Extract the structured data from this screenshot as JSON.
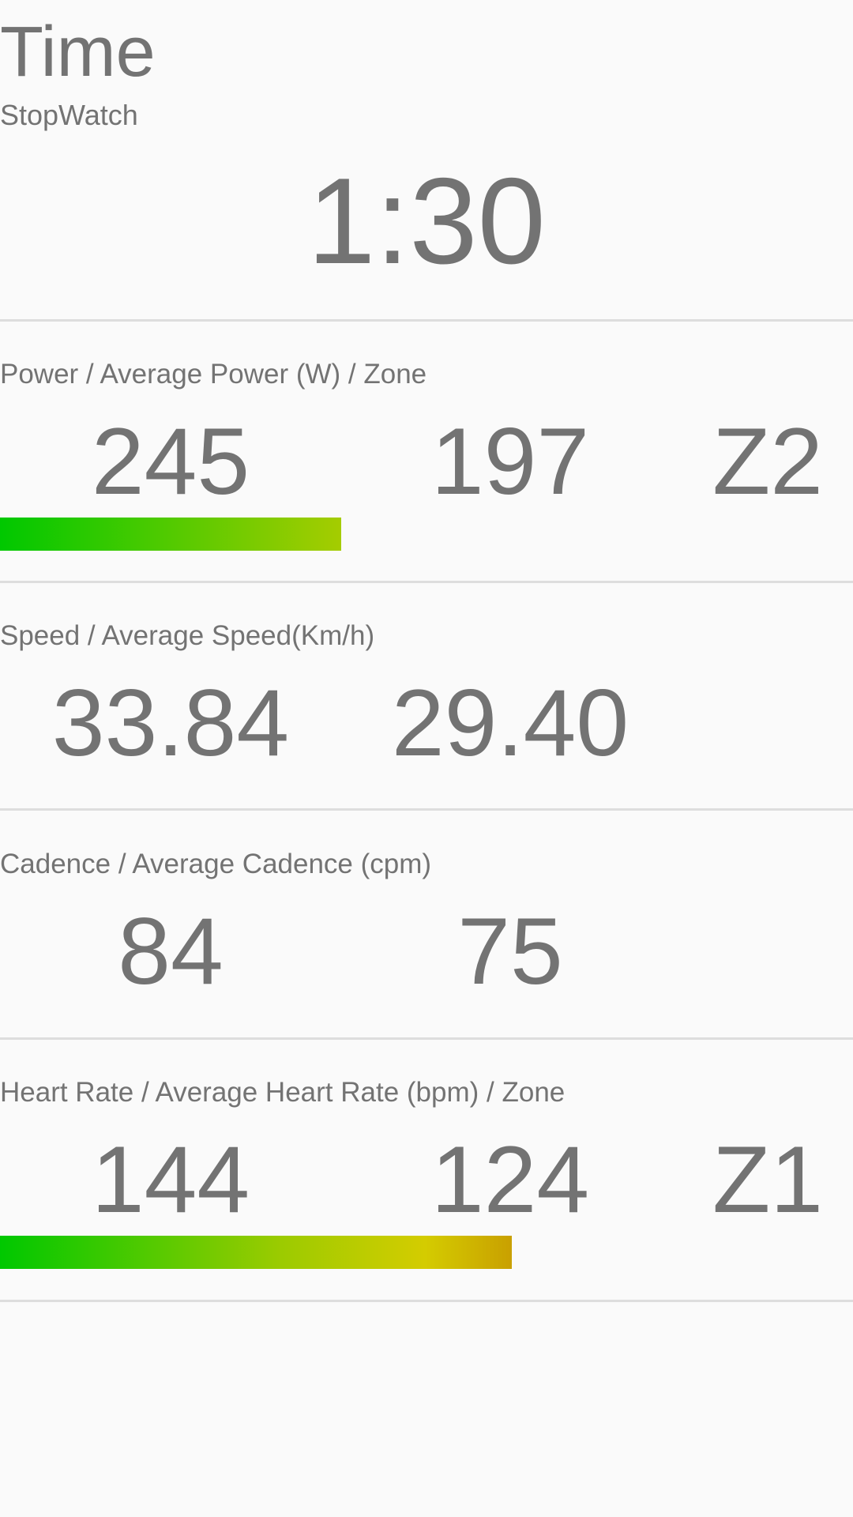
{
  "header": {
    "title": "Time",
    "subtitle": "StopWatch"
  },
  "stopwatch": {
    "value": "1:30"
  },
  "power": {
    "label": "Power / Average Power (W) / Zone",
    "current": "245",
    "average": "197",
    "zone": "Z2",
    "bar_fraction": 0.4,
    "bar_colors": [
      "#00c800",
      "#a5cc00"
    ]
  },
  "speed": {
    "label": "Speed / Average Speed(Km/h)",
    "current": "33.84",
    "average": "29.40"
  },
  "cadence": {
    "label": "Cadence / Average Cadence (cpm)",
    "current": "84",
    "average": "75"
  },
  "heart_rate": {
    "label": "Heart Rate / Average Heart Rate (bpm) / Zone",
    "current": "144",
    "average": "124",
    "zone": "Z1",
    "bar_fraction": 0.6,
    "bar_colors": [
      "#00c800",
      "#9ccb00",
      "#d4cc00",
      "#c9a000"
    ]
  },
  "colors": {
    "background": "#fafafa",
    "text": "#737373",
    "divider": "#dddddd"
  }
}
